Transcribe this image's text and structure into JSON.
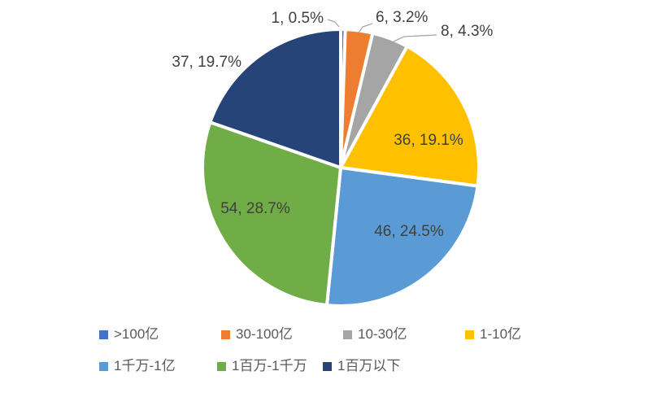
{
  "chart_data": {
    "type": "pie",
    "total": 188,
    "start_angle_deg": 0,
    "direction": "clockwise",
    "legend_position": "bottom",
    "data_label_format": "value, percent",
    "leader_lines": true,
    "slices": [
      {
        "label": ">100亿",
        "value": 1,
        "percent": "0.5%",
        "display": "1, 0.5%",
        "color": "#4472C4",
        "label_placement": "outside"
      },
      {
        "label": "30-100亿",
        "value": 6,
        "percent": "3.2%",
        "display": "6, 3.2%",
        "color": "#ED7D31",
        "label_placement": "outside"
      },
      {
        "label": "10-30亿",
        "value": 8,
        "percent": "4.3%",
        "display": "8, 4.3%",
        "color": "#A5A5A5",
        "label_placement": "outside"
      },
      {
        "label": "1-10亿",
        "value": 36,
        "percent": "19.1%",
        "display": "36, 19.1%",
        "color": "#FFC000",
        "label_placement": "inside"
      },
      {
        "label": "1千万-1亿",
        "value": 46,
        "percent": "24.5%",
        "display": "46, 24.5%",
        "color": "#5B9BD5",
        "label_placement": "inside"
      },
      {
        "label": "1百万-1千万",
        "value": 54,
        "percent": "28.7%",
        "display": "54, 28.7%",
        "color": "#70AD47",
        "label_placement": "inside"
      },
      {
        "label": "1百万以下",
        "value": 37,
        "percent": "19.7%",
        "display": "37, 19.7%",
        "color": "#264478",
        "label_placement": "outside"
      }
    ]
  },
  "colors": {
    "background": "#FFFFFF",
    "slice_border": "#FFFFFF",
    "data_label_text": "#404040",
    "legend_text": "#595959",
    "leader_line": "#A6A6A6"
  }
}
